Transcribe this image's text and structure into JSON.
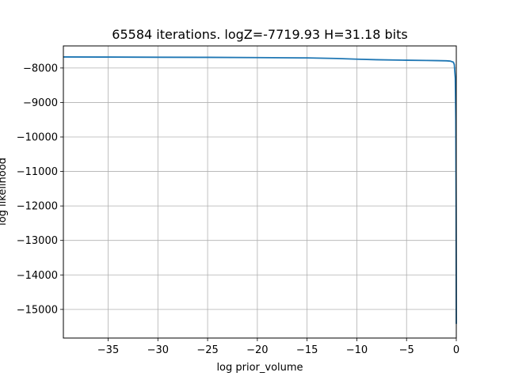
{
  "chart_data": {
    "type": "line",
    "title": "65584 iterations. logZ=-7719.93 H=31.18 bits",
    "xlabel": "log prior_volume",
    "ylabel": "log likelihood",
    "xlim": [
      -39.5,
      0
    ],
    "ylim": [
      -15830,
      -7360
    ],
    "grid": true,
    "xticks": [
      -35,
      -30,
      -25,
      -20,
      -15,
      -10,
      -5,
      0
    ],
    "xtick_labels": [
      "−35",
      "−30",
      "−25",
      "−20",
      "−15",
      "−10",
      "−5",
      "0"
    ],
    "yticks": [
      -8000,
      -9000,
      -10000,
      -11000,
      -12000,
      -13000,
      -14000,
      -15000
    ],
    "ytick_labels": [
      "−8000",
      "−9000",
      "−10000",
      "−11000",
      "−12000",
      "−13000",
      "−14000",
      "−15000"
    ],
    "series": [
      {
        "color": "#1f77b4",
        "x": [
          -39.5,
          -35,
          -30,
          -25,
          -20,
          -15,
          -12,
          -10,
          -8,
          -5,
          -3,
          -2,
          -1,
          -0.6,
          -0.3,
          -0.2,
          -0.1,
          -0.05,
          -0.02,
          0
        ],
        "y": [
          -7680,
          -7683,
          -7688,
          -7692,
          -7698,
          -7708,
          -7725,
          -7745,
          -7760,
          -7775,
          -7782,
          -7786,
          -7792,
          -7800,
          -7830,
          -7900,
          -8300,
          -9500,
          -12000,
          -15420
        ]
      }
    ]
  }
}
